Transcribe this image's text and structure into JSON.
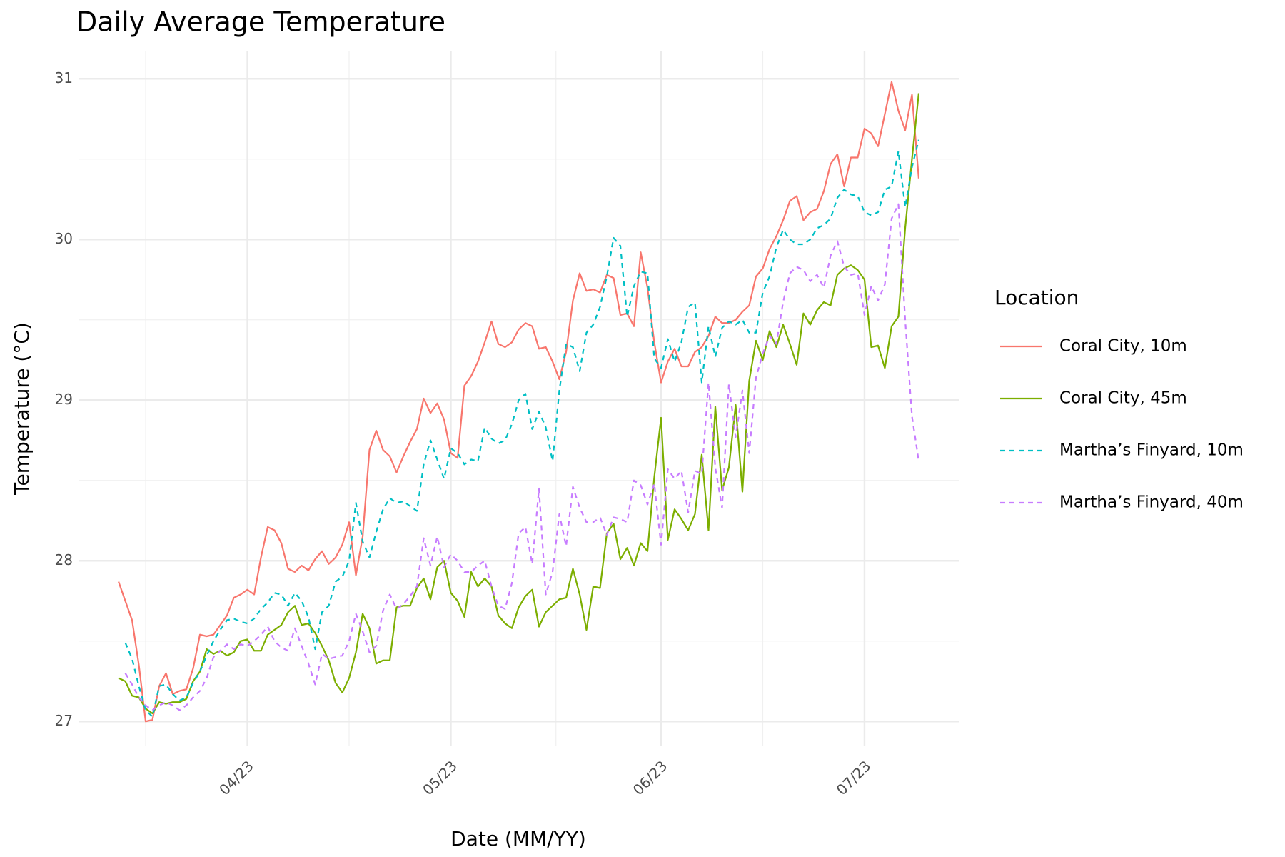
{
  "chart_data": {
    "type": "line",
    "title": "Daily Average Temperature",
    "x_label": "Date (MM/YY)",
    "y_label": "Temperature (°C)",
    "legend_title": "Location",
    "legend_position": "right",
    "grid": true,
    "categories": [
      null,
      null,
      null,
      null,
      null,
      null,
      null,
      null,
      null,
      null,
      null,
      null,
      null,
      null,
      null,
      null,
      null,
      null,
      null,
      "04/23",
      null,
      null,
      null,
      null,
      null,
      null,
      null,
      null,
      null,
      null,
      null,
      null,
      null,
      null,
      null,
      null,
      null,
      null,
      null,
      null,
      null,
      null,
      null,
      null,
      null,
      null,
      null,
      null,
      null,
      "05/23",
      null,
      null,
      null,
      null,
      null,
      null,
      null,
      null,
      null,
      null,
      null,
      null,
      null,
      null,
      null,
      null,
      null,
      null,
      null,
      null,
      null,
      null,
      null,
      null,
      null,
      null,
      null,
      null,
      null,
      null,
      "06/23",
      null,
      null,
      null,
      null,
      null,
      null,
      null,
      null,
      null,
      null,
      null,
      null,
      null,
      null,
      null,
      null,
      null,
      null,
      null,
      null,
      null,
      null,
      null,
      null,
      null,
      null,
      null,
      null,
      null,
      "07/23",
      null,
      null,
      null,
      null,
      null,
      null,
      null,
      null
    ],
    "ylim": [
      26.85,
      31.17
    ],
    "yticks": [
      27,
      28,
      29,
      30,
      31
    ],
    "series": [
      {
        "name": "Coral City, 10m",
        "color": "#F8766D",
        "linetype": "solid",
        "values": [
          27.87,
          27.75,
          27.63,
          27.35,
          27.0,
          27.01,
          27.22,
          27.3,
          27.17,
          27.19,
          27.2,
          27.33,
          27.54,
          27.53,
          27.54,
          27.6,
          27.66,
          27.77,
          27.79,
          27.82,
          27.79,
          28.02,
          28.21,
          28.19,
          28.11,
          27.95,
          27.93,
          27.97,
          27.94,
          28.01,
          28.06,
          27.98,
          28.02,
          28.1,
          28.24,
          27.91,
          28.15,
          28.69,
          28.81,
          28.69,
          28.65,
          28.55,
          28.65,
          28.74,
          28.82,
          29.01,
          28.92,
          28.98,
          28.88,
          28.67,
          28.64,
          29.09,
          29.15,
          29.24,
          29.36,
          29.49,
          29.35,
          29.33,
          29.36,
          29.44,
          29.48,
          29.46,
          29.32,
          29.33,
          29.24,
          29.13,
          29.3,
          29.62,
          29.79,
          29.68,
          29.69,
          29.67,
          29.78,
          29.76,
          29.53,
          29.54,
          29.46,
          29.92,
          29.7,
          29.36,
          29.11,
          29.24,
          29.32,
          29.21,
          29.21,
          29.3,
          29.33,
          29.4,
          29.52,
          29.48,
          29.48,
          29.5,
          29.55,
          29.59,
          29.77,
          29.82,
          29.94,
          30.02,
          30.12,
          30.24,
          30.27,
          30.12,
          30.17,
          30.19,
          30.3,
          30.47,
          30.53,
          30.33,
          30.51,
          30.51,
          30.69,
          30.66,
          30.58,
          30.78,
          30.98,
          30.8,
          30.68,
          30.9,
          30.38
        ]
      },
      {
        "name": "Coral City, 45m",
        "color": "#7CAE00",
        "linetype": "solid",
        "values": [
          27.27,
          27.25,
          27.16,
          27.15,
          27.08,
          27.05,
          27.12,
          27.11,
          27.12,
          27.12,
          27.14,
          27.25,
          27.31,
          27.45,
          27.42,
          27.44,
          27.41,
          27.43,
          27.5,
          27.51,
          27.44,
          27.44,
          27.54,
          27.57,
          27.6,
          27.68,
          27.72,
          27.6,
          27.61,
          27.55,
          27.47,
          27.38,
          27.24,
          27.18,
          27.27,
          27.43,
          27.67,
          27.58,
          27.36,
          27.38,
          27.38,
          27.71,
          27.72,
          27.72,
          27.83,
          27.89,
          27.76,
          27.96,
          28.0,
          27.8,
          27.75,
          27.65,
          27.93,
          27.84,
          27.89,
          27.84,
          27.66,
          27.61,
          27.58,
          27.71,
          27.78,
          27.82,
          27.59,
          27.68,
          27.72,
          27.76,
          27.77,
          27.95,
          27.79,
          27.57,
          27.84,
          27.83,
          28.17,
          28.23,
          28.01,
          28.08,
          27.97,
          28.11,
          28.06,
          28.52,
          28.89,
          28.13,
          28.32,
          28.26,
          28.19,
          28.29,
          28.66,
          28.19,
          28.96,
          28.44,
          28.58,
          28.97,
          28.43,
          29.12,
          29.37,
          29.25,
          29.43,
          29.33,
          29.47,
          29.35,
          29.22,
          29.54,
          29.47,
          29.56,
          29.61,
          29.59,
          29.78,
          29.82,
          29.84,
          29.81,
          29.75,
          29.33,
          29.34,
          29.2,
          29.46,
          29.52,
          30.07,
          30.5,
          30.91
        ]
      },
      {
        "name": "Martha’s Finyard, 10m",
        "color": "#00BFC4",
        "linetype": "dashed",
        "values": [
          null,
          27.49,
          27.39,
          27.22,
          27.07,
          27.03,
          27.22,
          27.23,
          27.17,
          27.13,
          27.15,
          27.24,
          27.31,
          27.41,
          27.5,
          27.57,
          27.63,
          27.64,
          27.62,
          27.61,
          27.64,
          27.7,
          27.74,
          27.8,
          27.79,
          27.72,
          27.8,
          27.75,
          27.65,
          27.45,
          27.68,
          27.72,
          27.87,
          27.9,
          28.0,
          28.36,
          28.12,
          28.02,
          28.18,
          28.32,
          28.39,
          28.36,
          28.37,
          28.34,
          28.31,
          28.6,
          28.75,
          28.63,
          28.51,
          28.7,
          28.67,
          28.6,
          28.63,
          28.62,
          28.83,
          28.76,
          28.73,
          28.75,
          28.85,
          29.0,
          29.04,
          28.82,
          28.93,
          28.83,
          28.62,
          29.06,
          29.35,
          29.33,
          29.18,
          29.42,
          29.47,
          29.58,
          29.77,
          30.01,
          29.96,
          29.52,
          29.71,
          29.8,
          29.79,
          29.26,
          29.2,
          29.38,
          29.24,
          29.36,
          29.58,
          29.61,
          29.11,
          29.46,
          29.27,
          29.45,
          29.49,
          29.47,
          29.5,
          29.42,
          29.42,
          29.67,
          29.77,
          29.95,
          30.06,
          30.0,
          29.97,
          29.97,
          30.0,
          30.07,
          30.09,
          30.13,
          30.26,
          30.31,
          30.28,
          30.27,
          30.17,
          30.15,
          30.17,
          30.31,
          30.33,
          30.55,
          30.2,
          30.45,
          30.62
        ]
      },
      {
        "name": "Martha’s Finyard, 40m",
        "color": "#C77CFF",
        "linetype": "dashed",
        "values": [
          null,
          27.3,
          27.23,
          27.15,
          27.1,
          27.07,
          27.1,
          27.12,
          27.1,
          27.07,
          27.1,
          27.15,
          27.19,
          27.27,
          27.4,
          27.44,
          27.48,
          27.45,
          27.48,
          27.47,
          27.5,
          27.54,
          27.59,
          27.5,
          27.46,
          27.44,
          27.58,
          27.47,
          27.36,
          27.23,
          27.42,
          27.39,
          27.4,
          27.41,
          27.5,
          27.67,
          27.56,
          27.43,
          27.47,
          27.69,
          27.79,
          27.7,
          27.73,
          27.78,
          27.84,
          28.14,
          27.97,
          28.15,
          27.96,
          28.04,
          28.0,
          27.93,
          27.93,
          27.97,
          28.0,
          27.84,
          27.72,
          27.7,
          27.86,
          28.17,
          28.21,
          27.98,
          28.45,
          27.79,
          27.93,
          28.29,
          28.09,
          28.46,
          28.33,
          28.24,
          28.24,
          28.27,
          28.16,
          28.27,
          28.26,
          28.24,
          28.5,
          28.47,
          28.35,
          28.48,
          28.1,
          28.57,
          28.51,
          28.56,
          28.3,
          28.56,
          28.54,
          29.11,
          28.58,
          28.33,
          29.1,
          28.77,
          29.06,
          28.67,
          29.14,
          29.29,
          29.4,
          29.35,
          29.61,
          29.79,
          29.83,
          29.81,
          29.74,
          29.78,
          29.7,
          29.9,
          29.99,
          29.83,
          29.78,
          29.79,
          29.53,
          29.71,
          29.62,
          29.72,
          30.13,
          30.22,
          29.5,
          28.9,
          28.62
        ]
      }
    ]
  }
}
